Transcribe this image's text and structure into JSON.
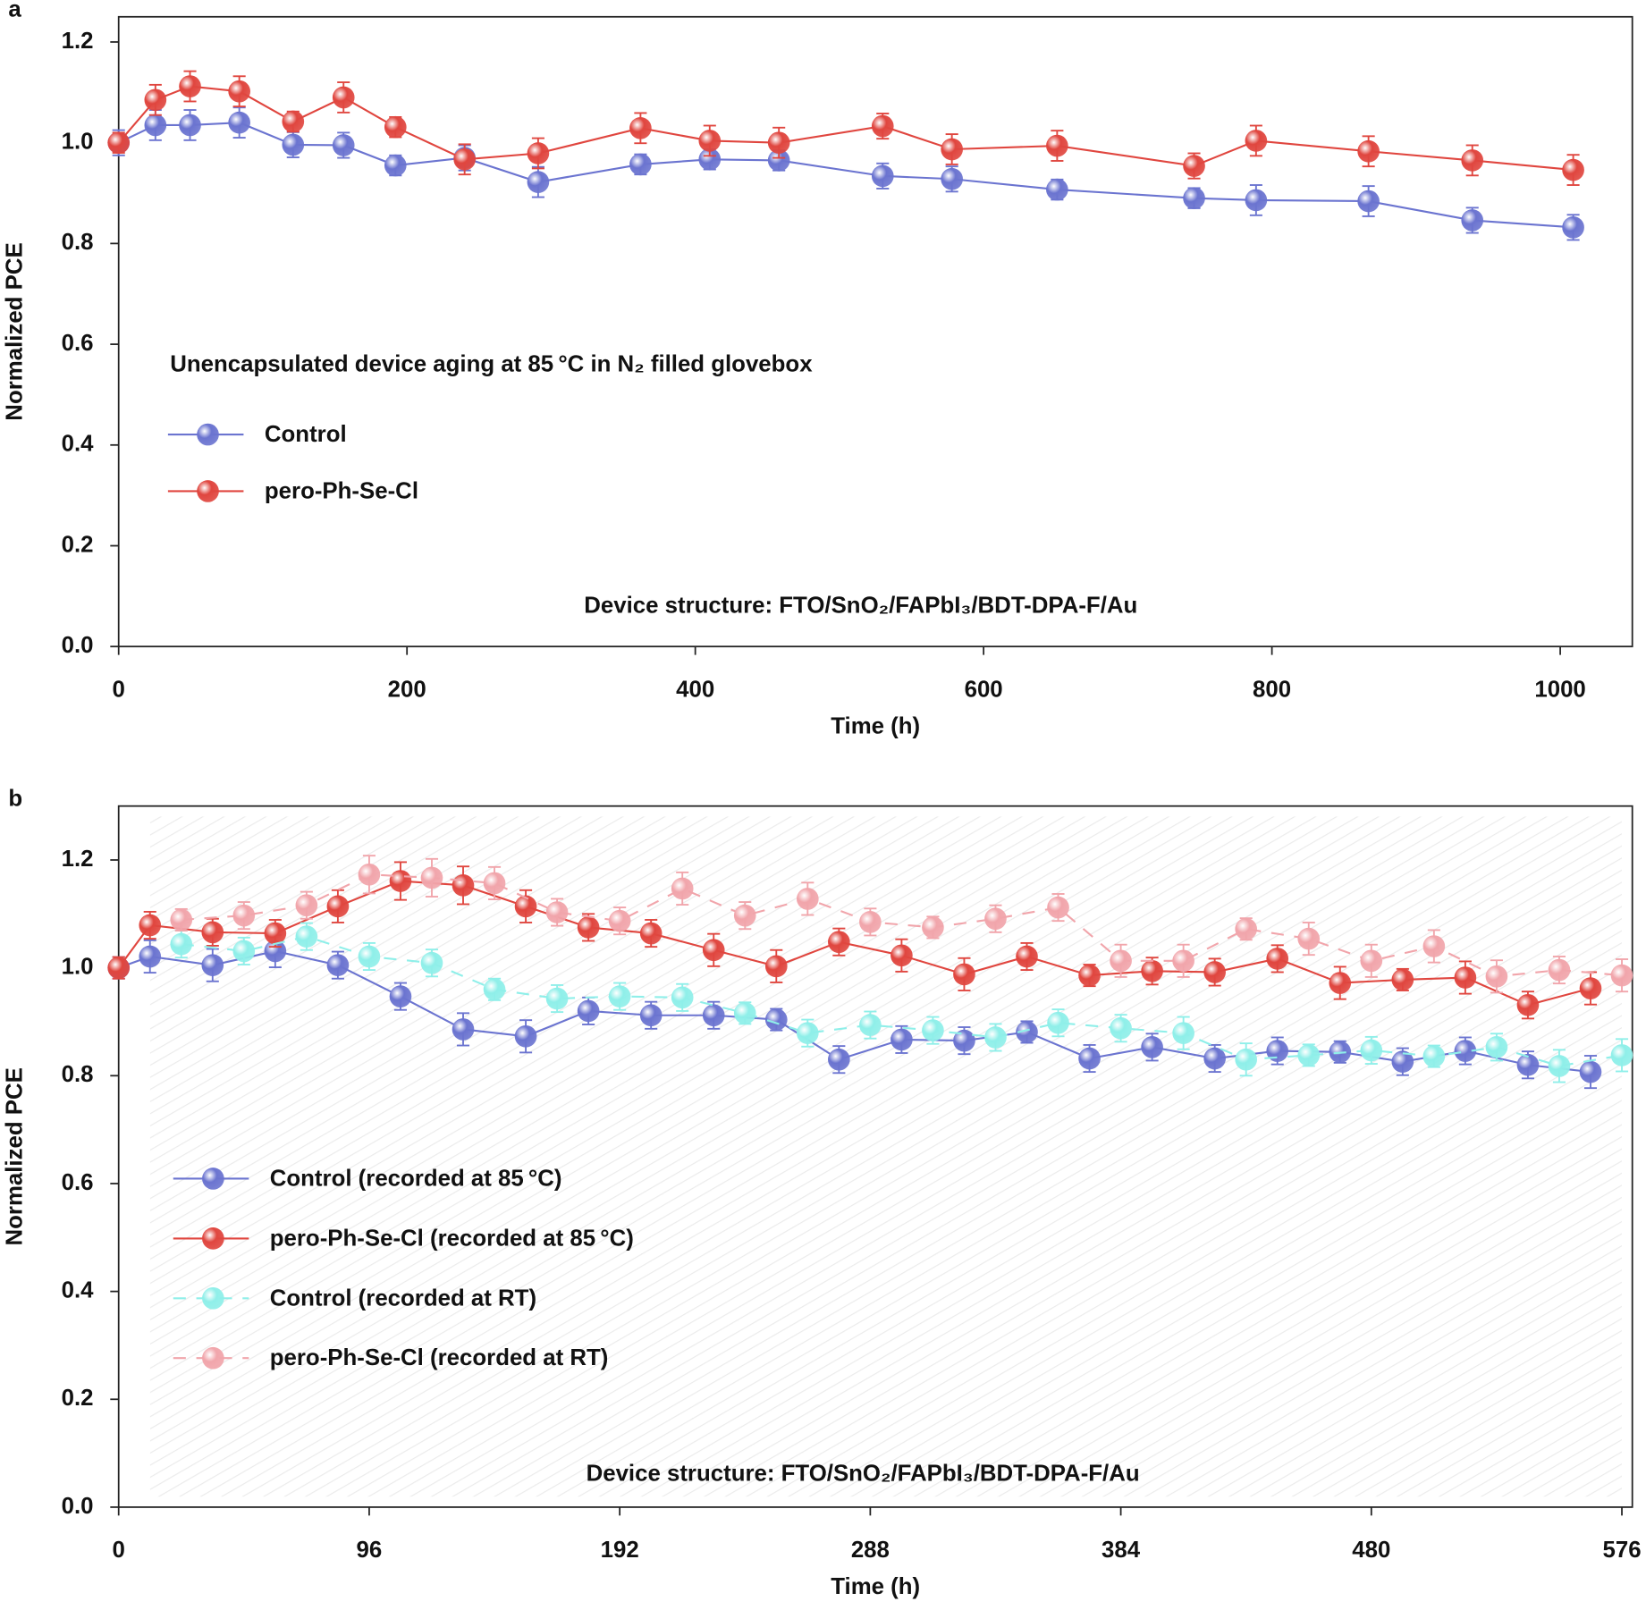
{
  "chart_data": [
    {
      "type": "line",
      "panel_label": "a",
      "x_label": "Time (h)",
      "y_label": "Normalized PCE",
      "annotations": [
        "Unencapsulated device aging at 85 °C in N₂ filled glovebox",
        "Device structure: FTO/SnO₂/FAPbI₃/BDT-DPA-F/Au"
      ],
      "xlim": [
        0,
        1050
      ],
      "xticks": [
        0,
        200,
        400,
        600,
        800,
        1000
      ],
      "ylim": [
        0,
        1.25
      ],
      "yticks": [
        {
          "value": 0,
          "label": "0.0"
        },
        0.2,
        0.4,
        0.6,
        0.8,
        {
          "value": 1,
          "label": "1.0"
        },
        1.2
      ],
      "series": [
        {
          "name": "Control",
          "color": "#6b74d0",
          "linestyle": "solid",
          "x": [
            0,
            25.5,
            49.5,
            83.7,
            121,
            156,
            192,
            240,
            291,
            362,
            410,
            458,
            530,
            578,
            651,
            746,
            789,
            867,
            939,
            1009
          ],
          "values": [
            1.0,
            1.035,
            1.035,
            1.04,
            0.996,
            0.995,
            0.955,
            0.97,
            0.922,
            0.957,
            0.967,
            0.965,
            0.934,
            0.928,
            0.907,
            0.89,
            0.886,
            0.884,
            0.846,
            0.832
          ],
          "errors": [
            0.025,
            0.03,
            0.03,
            0.03,
            0.025,
            0.025,
            0.02,
            0.025,
            0.03,
            0.02,
            0.02,
            0.02,
            0.025,
            0.025,
            0.02,
            0.02,
            0.03,
            0.03,
            0.025,
            0.025
          ]
        },
        {
          "name": "pero-Ph-Se-Cl",
          "color": "#e0463f",
          "linestyle": "solid",
          "x": [
            0,
            25.5,
            49.5,
            83.7,
            121,
            156,
            192,
            240,
            291,
            362,
            410,
            458,
            530,
            578,
            651,
            746,
            789,
            867,
            939,
            1009
          ],
          "values": [
            1.0,
            1.085,
            1.112,
            1.102,
            1.042,
            1.09,
            1.031,
            0.967,
            0.979,
            1.029,
            1.004,
            1.0,
            1.033,
            0.987,
            0.994,
            0.954,
            1.004,
            0.983,
            0.965,
            0.946
          ],
          "errors": [
            0.02,
            0.03,
            0.03,
            0.03,
            0.02,
            0.03,
            0.02,
            0.03,
            0.03,
            0.03,
            0.03,
            0.03,
            0.025,
            0.03,
            0.03,
            0.025,
            0.03,
            0.03,
            0.03,
            0.03
          ]
        }
      ]
    },
    {
      "type": "line",
      "panel_label": "b",
      "x_label": "Time (h)",
      "y_label": "Normalized PCE",
      "annotations": [
        "Device structure: FTO/SnO₂/FAPbI₃/BDT-DPA-F/Au"
      ],
      "xlim": [
        0,
        580
      ],
      "xticks": [
        0,
        96,
        192,
        288,
        384,
        480,
        576
      ],
      "ylim": [
        0,
        1.3
      ],
      "yticks": [
        {
          "value": 0,
          "label": "0.0"
        },
        0.2,
        0.4,
        0.6,
        0.8,
        {
          "value": 1,
          "label": "1.0"
        },
        1.2
      ],
      "series": [
        {
          "name": "Control (recorded at 85 °C)",
          "color": "#6b74d0",
          "linestyle": "solid",
          "x": [
            0,
            12,
            36,
            60,
            84,
            108,
            132,
            156,
            180,
            204,
            228,
            252,
            276,
            300,
            324,
            348,
            372,
            396,
            420,
            444,
            468,
            492,
            516,
            540,
            564
          ],
          "values": [
            1.0,
            1.021,
            1.005,
            1.031,
            1.005,
            0.947,
            0.886,
            0.873,
            0.92,
            0.912,
            0.912,
            0.904,
            0.83,
            0.867,
            0.865,
            0.881,
            0.832,
            0.853,
            0.832,
            0.846,
            0.844,
            0.826,
            0.846,
            0.82,
            0.807
          ],
          "errors": [
            0.02,
            0.03,
            0.03,
            0.03,
            0.025,
            0.025,
            0.03,
            0.03,
            0.025,
            0.025,
            0.025,
            0.02,
            0.025,
            0.025,
            0.025,
            0.02,
            0.025,
            0.025,
            0.025,
            0.025,
            0.02,
            0.025,
            0.025,
            0.025,
            0.03
          ]
        },
        {
          "name": "pero-Ph-Se-Cl (recorded at 85 °C)",
          "color": "#e0463f",
          "linestyle": "solid",
          "x": [
            0,
            12,
            36,
            60,
            84,
            108,
            132,
            156,
            180,
            204,
            228,
            252,
            276,
            300,
            324,
            348,
            372,
            396,
            420,
            444,
            468,
            492,
            516,
            540,
            564
          ],
          "values": [
            1.0,
            1.079,
            1.066,
            1.064,
            1.114,
            1.161,
            1.153,
            1.114,
            1.075,
            1.064,
            1.033,
            1.003,
            1.048,
            1.023,
            0.988,
            1.021,
            0.986,
            0.994,
            0.992,
            1.017,
            0.972,
            0.978,
            0.982,
            0.931,
            0.962
          ],
          "errors": [
            0.02,
            0.025,
            0.025,
            0.025,
            0.03,
            0.035,
            0.035,
            0.03,
            0.025,
            0.025,
            0.03,
            0.03,
            0.025,
            0.03,
            0.03,
            0.025,
            0.02,
            0.025,
            0.025,
            0.025,
            0.03,
            0.02,
            0.03,
            0.025,
            0.03
          ]
        },
        {
          "name": "Control (recorded at RT)",
          "color": "#8fefe9",
          "linestyle": "dashed",
          "x": [
            24,
            48,
            72,
            96,
            120,
            144,
            168,
            192,
            216,
            240,
            264,
            288,
            312,
            336,
            360,
            384,
            408,
            432,
            456,
            480,
            504,
            528,
            552,
            576
          ],
          "values": [
            1.044,
            1.031,
            1.058,
            1.021,
            1.009,
            0.96,
            0.943,
            0.947,
            0.945,
            0.916,
            0.879,
            0.894,
            0.884,
            0.871,
            0.898,
            0.888,
            0.879,
            0.83,
            0.838,
            0.847,
            0.836,
            0.853,
            0.818,
            0.838
          ],
          "errors": [
            0.025,
            0.025,
            0.025,
            0.025,
            0.025,
            0.02,
            0.025,
            0.025,
            0.025,
            0.02,
            0.025,
            0.025,
            0.025,
            0.025,
            0.025,
            0.025,
            0.03,
            0.03,
            0.02,
            0.025,
            0.02,
            0.025,
            0.03,
            0.03
          ]
        },
        {
          "name": "pero-Ph-Se-Cl (recorded at RT)",
          "color": "#f1a5ab",
          "linestyle": "dashed",
          "x": [
            24,
            48,
            72,
            96,
            120,
            144,
            168,
            192,
            216,
            240,
            264,
            288,
            312,
            336,
            360,
            384,
            408,
            432,
            456,
            480,
            504,
            528,
            552,
            576
          ],
          "values": [
            1.089,
            1.097,
            1.116,
            1.173,
            1.167,
            1.157,
            1.103,
            1.087,
            1.147,
            1.097,
            1.128,
            1.085,
            1.075,
            1.091,
            1.112,
            1.013,
            1.013,
            1.072,
            1.054,
            1.013,
            1.04,
            0.984,
            0.996,
            0.986
          ],
          "errors": [
            0.02,
            0.025,
            0.025,
            0.035,
            0.035,
            0.03,
            0.025,
            0.025,
            0.03,
            0.025,
            0.03,
            0.025,
            0.02,
            0.025,
            0.025,
            0.03,
            0.03,
            0.02,
            0.03,
            0.03,
            0.03,
            0.03,
            0.025,
            0.03
          ]
        }
      ]
    }
  ]
}
